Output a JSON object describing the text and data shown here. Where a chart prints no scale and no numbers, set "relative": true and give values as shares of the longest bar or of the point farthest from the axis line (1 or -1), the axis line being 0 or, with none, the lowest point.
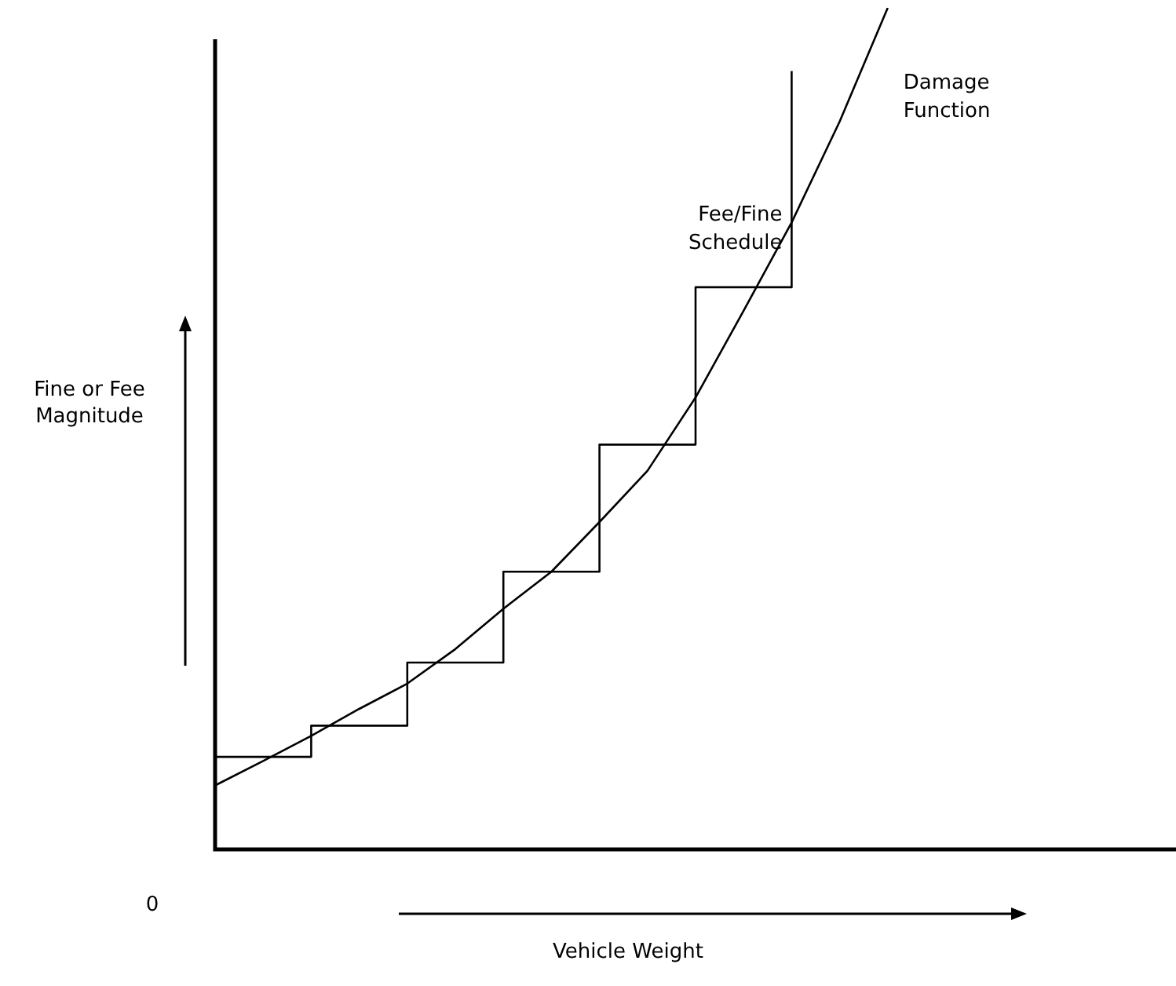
{
  "chart_data": {
    "type": "line",
    "relative": true,
    "xlabel": "Vehicle Weight",
    "ylabel": "Fine or Fee Magnitude",
    "annotations": [
      "0"
    ],
    "legend": false,
    "marker": "none",
    "categories": [
      null,
      null,
      null,
      null,
      null,
      null,
      null,
      null,
      null,
      null,
      null,
      null,
      null,
      null,
      null,
      null,
      null,
      null,
      null,
      null,
      null
    ],
    "series": [
      {
        "name": "Fee/Fine Schedule",
        "type": "step",
        "color": "#000000",
        "values": [
          0.11,
          0.11,
          0.147,
          0.147,
          0.222,
          0.222,
          0.33,
          0.33,
          0.481,
          0.481,
          0.668,
          0.668,
          0.925,
          null,
          null,
          null,
          null,
          null,
          null,
          null,
          null
        ]
      },
      {
        "name": "Damage Function",
        "type": "line",
        "color": "#000000",
        "values": [
          0.076,
          0.105,
          0.135,
          0.167,
          0.197,
          0.238,
          0.286,
          0.33,
          0.389,
          0.45,
          0.537,
          0.64,
          0.745,
          0.865,
          1,
          null,
          null,
          null,
          null,
          null,
          null
        ]
      }
    ]
  }
}
